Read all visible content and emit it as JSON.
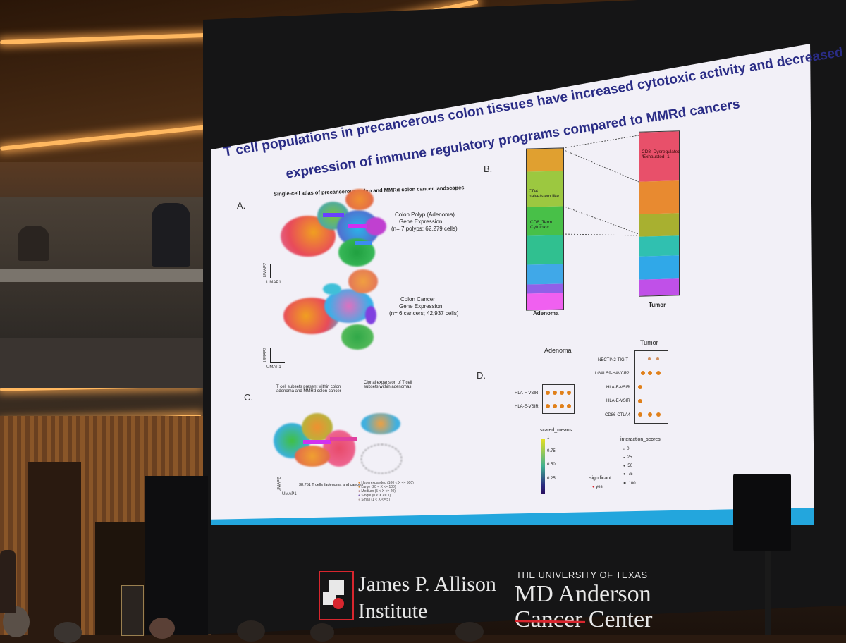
{
  "slide": {
    "title_line1": "T cell populations in precancerous colon tissues have increased cytotoxic activity and decreased",
    "title_line2": "expression of immune regulatory programs compared to MMRd cancers",
    "panel_a": {
      "letter": "A.",
      "heading": "Single-cell atlas of precancerous polyp and MMRd colon cancer landscapes",
      "polyp_caption": [
        "Colon Polyp (Adenoma)",
        "Gene Expression",
        "(n= 7 polyps; 62,279 cells)"
      ],
      "cancer_caption": [
        "Colon Cancer",
        "Gene Expression",
        "(n= 6 cancers; 42,937 cells)"
      ],
      "axis_y": "UMAP2",
      "axis_x": "UMAP1"
    },
    "panel_b": {
      "letter": "B.",
      "label_cd4": "CD4 naive/stem like",
      "label_cd8_term": "CD8_Term. Cytotoxic",
      "label_cd8_dys": "CD8_Dysregulated /Exhausted_1",
      "adenoma_label": "Adenoma",
      "tumor_label": "Tumor"
    },
    "panel_c": {
      "letter": "C.",
      "heading_left": "T cell subsets present within colon adenoma and MMRd colon cancer",
      "heading_right": "Clonal expansion of T cell subsets within adenomas",
      "cells_note": "38,751 T cells (adenoma and cancer)",
      "axis_y": "UMAP2",
      "axis_x": "UMAP1",
      "legend": [
        "Hyperexpanded (100 < X <= 500)",
        "Large (20 < X <= 100)",
        "Medium (5 < X <= 20)",
        "Single (0 < X <= 1)",
        "Small (1 < X <= 5)"
      ]
    },
    "panel_d": {
      "letter": "D.",
      "adenoma_title": "Adenoma",
      "tumor_title": "Tumor",
      "adenoma_rows": [
        "HLA-F-VSIR",
        "HLA-E-VSIR"
      ],
      "tumor_rows": [
        "NECTIN2-TIGIT",
        "LGALS9-HAVCR2",
        "HLA-F-VSIR",
        "HLA-E-VSIR",
        "CD86-CTLA4"
      ],
      "scale_title": "scaled_means",
      "scale_ticks": [
        "1",
        "0.75",
        "0.50",
        "0.25"
      ],
      "interaction_title": "interaction_scores",
      "interaction_ticks": [
        "0",
        "25",
        "50",
        "75",
        "100"
      ],
      "significant_title": "significant",
      "significant_value": "yes"
    }
  },
  "footer": {
    "institute_line1": "James P. Allison",
    "institute_line2": "Institute",
    "univ_line1": "THE UNIVERSITY OF TEXAS",
    "univ_line2": "MD Anderson",
    "univ_line3": "Cancer Center"
  },
  "colors": {
    "title": "#2a2c86",
    "slide_bg": "#f2f0f7",
    "accent_bar": "#23a6dd",
    "logo_red": "#d8262e"
  }
}
